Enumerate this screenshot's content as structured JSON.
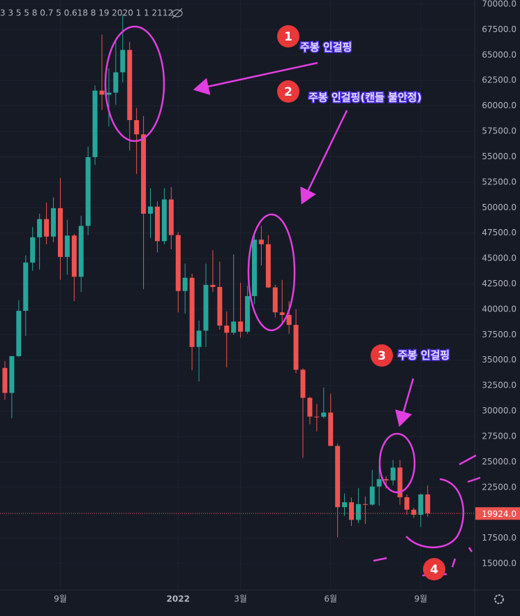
{
  "chart_data": {
    "type": "candlestick",
    "indicator_text": "3 3 5 5 8 0.7 5 0.618 8 19 2020 1 1 2112",
    "categories": [
      null,
      null,
      null,
      null,
      null,
      null,
      null,
      null,
      "9월",
      null,
      null,
      null,
      null,
      null,
      null,
      null,
      null,
      null,
      null,
      null,
      null,
      null,
      null,
      null,
      null,
      "2022",
      null,
      null,
      null,
      null,
      null,
      null,
      null,
      null,
      "3월",
      null,
      null,
      null,
      null,
      null,
      null,
      null,
      null,
      null,
      null,
      null,
      null,
      "6월",
      null,
      null,
      null,
      null,
      null,
      null,
      null,
      null,
      null,
      null,
      null,
      null,
      "9월",
      null
    ],
    "open": [
      34240,
      31780,
      35400,
      39850,
      44600,
      47080,
      48870,
      47150,
      49940,
      45150,
      47250,
      43200,
      48200,
      54960,
      61500,
      61100,
      61300,
      63300,
      65500,
      58600,
      57200,
      49400,
      50100,
      46700,
      50800,
      47300,
      41800,
      43100,
      36300,
      37900,
      42400,
      42200,
      38400,
      37700,
      38800,
      37800,
      41300,
      46850,
      46400,
      42150,
      39700,
      39450,
      38470,
      34060,
      31300,
      29450,
      29440,
      29850,
      26570,
      20550,
      21030,
      19300,
      20850,
      20800,
      22580,
      23300,
      23180,
      24440,
      21520,
      20300,
      19800,
      21800
    ],
    "high": [
      34900,
      35400,
      40900,
      45300,
      48100,
      49400,
      50500,
      51000,
      52900,
      48800,
      47400,
      49200,
      56000,
      62000,
      67000,
      63700,
      66500,
      69000,
      66300,
      59800,
      59000,
      51900,
      50600,
      51900,
      52000,
      47600,
      44500,
      43500,
      38900,
      44500,
      45800,
      44700,
      39800,
      45400,
      42600,
      42300,
      47600,
      48200,
      47300,
      42400,
      42900,
      40800,
      40000,
      34200,
      31400,
      30700,
      32300,
      31700,
      26800,
      21900,
      21500,
      22400,
      21600,
      24200,
      24600,
      23600,
      25200,
      25200,
      21800,
      20500,
      21900,
      22700
    ],
    "low": [
      31100,
      29300,
      35300,
      37400,
      43800,
      43900,
      46400,
      46600,
      42900,
      43400,
      40800,
      41700,
      47300,
      54200,
      59600,
      58000,
      60100,
      62300,
      55600,
      53300,
      42000,
      47000,
      45600,
      46400,
      45900,
      39700,
      39600,
      34000,
      32900,
      36300,
      41700,
      38000,
      34300,
      37500,
      37200,
      37600,
      40500,
      44300,
      42100,
      39200,
      38600,
      37600,
      33700,
      25400,
      28700,
      28000,
      29300,
      26600,
      17600,
      19700,
      18700,
      19000,
      18900,
      20700,
      20700,
      22400,
      22700,
      20800,
      19800,
      19500,
      18600,
      19600
    ],
    "close": [
      31780,
      35400,
      39850,
      44600,
      47080,
      48870,
      47150,
      49940,
      45150,
      47250,
      43200,
      48200,
      54960,
      61500,
      61100,
      61300,
      63300,
      65500,
      58600,
      57200,
      49400,
      50100,
      46700,
      50800,
      47300,
      41800,
      43100,
      36300,
      37900,
      42400,
      42200,
      38400,
      37700,
      38800,
      37800,
      41300,
      46850,
      46400,
      42150,
      39700,
      39450,
      38470,
      34060,
      31300,
      29450,
      29440,
      29850,
      26570,
      20550,
      21030,
      19300,
      20850,
      20800,
      22580,
      23300,
      23180,
      24440,
      21520,
      20300,
      19800,
      21800,
      19924
    ],
    "up_color": "#26a69a",
    "down_color": "#ef5350",
    "ylim": [
      12390,
      70410
    ],
    "yticks": [
      {
        "value": 70000,
        "label": "70000.0"
      },
      {
        "value": 67500,
        "label": "67500.0"
      },
      {
        "value": 65000,
        "label": "65000.0"
      },
      {
        "value": 62500,
        "label": "62500.0"
      },
      {
        "value": 60000,
        "label": "60000.0"
      },
      {
        "value": 57500,
        "label": "57500.0"
      },
      {
        "value": 55000,
        "label": "55000.0"
      },
      {
        "value": 52500,
        "label": "52500.0"
      },
      {
        "value": 50000,
        "label": "50000.0"
      },
      {
        "value": 47500,
        "label": "47500.0"
      },
      {
        "value": 45000,
        "label": "45000.0"
      },
      {
        "value": 42500,
        "label": "42500.0"
      },
      {
        "value": 40000,
        "label": "40000.0"
      },
      {
        "value": 37500,
        "label": "37500.0"
      },
      {
        "value": 35000,
        "label": "35000.0"
      },
      {
        "value": 32500,
        "label": "32500.0"
      },
      {
        "value": 30000,
        "label": "30000.0"
      },
      {
        "value": 27500,
        "label": "27500.0"
      },
      {
        "value": 25000,
        "label": "25000.0"
      },
      {
        "value": 22500,
        "label": "22500.0"
      },
      {
        "value": 20000,
        "label": "20000.0"
      },
      {
        "value": 17500,
        "label": "17500.0"
      },
      {
        "value": 15000,
        "label": "15000.0"
      }
    ],
    "grid": true,
    "last_price": {
      "value": 19924,
      "label": "19924.0"
    },
    "annotations": [
      {
        "number": "1",
        "text": "주봉 인걸핑"
      },
      {
        "number": "2",
        "text": "주봉 인걸핑(캔들 불안정)"
      },
      {
        "number": "3",
        "text": "주봉 인걸핑"
      },
      {
        "number": "4"
      }
    ]
  }
}
